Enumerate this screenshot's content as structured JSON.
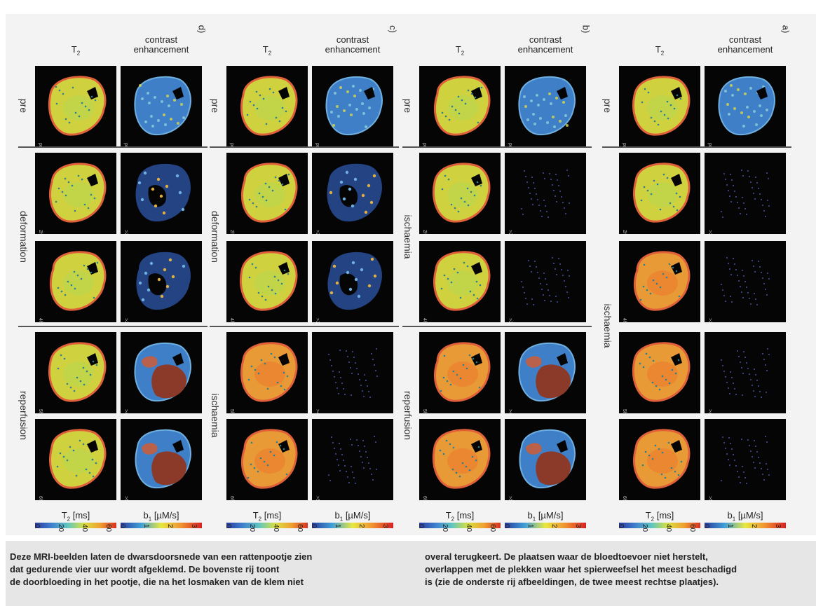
{
  "column_titles": {
    "t2": "T",
    "t2_sub": "2",
    "contrast_line1": "contrast",
    "contrast_line2": "enhancement"
  },
  "panels": [
    {
      "letter": "d)",
      "groups": [
        {
          "label": "pre",
          "rows": [
            {
              "t2_time": "pre",
              "ce_time": "pre",
              "ce_style": "blue"
            }
          ]
        },
        {
          "label": "deformation",
          "rows": [
            {
              "t2_time": "2h",
              "ce_time": ">2h",
              "ce_style": "partial"
            },
            {
              "t2_time": "4h",
              "ce_time": ">2h",
              "ce_style": "partial"
            }
          ]
        },
        {
          "label": "reperfusion",
          "rows": [
            {
              "t2_time": "5h",
              "ce_time": ">4h",
              "ce_style": "brown"
            },
            {
              "t2_time": "6h",
              "ce_time": ">5h",
              "ce_style": "brown"
            }
          ]
        }
      ]
    },
    {
      "letter": "c)",
      "groups": [
        {
          "label": "pre",
          "rows": [
            {
              "t2_time": "pre",
              "ce_time": "pre",
              "ce_style": "blue"
            }
          ]
        },
        {
          "label": "deformation",
          "rows": [
            {
              "t2_time": "2h",
              "ce_time": ">2h",
              "ce_style": "partial"
            },
            {
              "t2_time": "4h",
              "ce_time": ">2h",
              "ce_style": "partial"
            }
          ]
        },
        {
          "label": "ischaemia",
          "rows": [
            {
              "t2_time": "5h",
              "ce_time": ">4h",
              "ce_style": "dots"
            },
            {
              "t2_time": "6h",
              "ce_time": ">5h",
              "ce_style": "dots"
            }
          ]
        }
      ]
    },
    {
      "letter": "b)",
      "groups": [
        {
          "label": "pre",
          "rows": [
            {
              "t2_time": "pre",
              "ce_time": "pre",
              "ce_style": "blue"
            }
          ]
        },
        {
          "label": "ischaemia",
          "rows": [
            {
              "t2_time": "2h",
              "ce_time": ">2h",
              "ce_style": "dots"
            },
            {
              "t2_time": "4h",
              "ce_time": ">2h",
              "ce_style": "dots"
            }
          ]
        },
        {
          "label": "reperfusion",
          "rows": [
            {
              "t2_time": "5h",
              "ce_time": ">4h",
              "ce_style": "brown"
            },
            {
              "t2_time": "6h",
              "ce_time": ">5h",
              "ce_style": "brown"
            }
          ]
        }
      ]
    },
    {
      "letter": "a)",
      "groups": [
        {
          "label": "pre",
          "rows": [
            {
              "t2_time": "pre",
              "ce_time": "pre",
              "ce_style": "blue"
            }
          ]
        },
        {
          "label": "ischaemia",
          "rows": [
            {
              "t2_time": "2h",
              "ce_time": ">2h",
              "ce_style": "dots"
            },
            {
              "t2_time": "4h",
              "ce_time": ">2h",
              "ce_style": "dots"
            },
            {
              "t2_time": "5h",
              "ce_time": ">4h",
              "ce_style": "dots"
            },
            {
              "t2_time": "6h",
              "ce_time": ">5h",
              "ce_style": "dots"
            }
          ]
        }
      ]
    }
  ],
  "colorbars": {
    "t2_label": "T",
    "t2_sub": "2",
    "t2_unit": " [ms]",
    "t2_ticks": [
      "0",
      "20",
      "40",
      "60"
    ],
    "b1_label": "b",
    "b1_sub": "1",
    "b1_unit": " [µM/s]",
    "b1_ticks": [
      "0",
      "1",
      "2",
      "3"
    ]
  },
  "colors": {
    "t2_main": "#d8d23a",
    "t2_rim": "#e0603a",
    "ce_blue": "#3f7fc8",
    "ce_brown": "#8b3a2a",
    "bg": "#050505"
  },
  "caption": {
    "left": "Deze MRI-beelden laten de dwarsdoorsnede van een rattenpootje zien\ndat gedurende vier uur wordt afgeklemd. De bovenste rij toont\nde doorbloeding in het pootje, die na het losmaken van de klem niet",
    "right": "overal terugkeert. De plaatsen waar de bloedtoevoer niet herstelt,\noverlappen met de plekken waar het spierweefsel het meest beschadigd\nis (zie de onderste rij afbeeldingen, de twee meest rechtse plaatjes)."
  }
}
